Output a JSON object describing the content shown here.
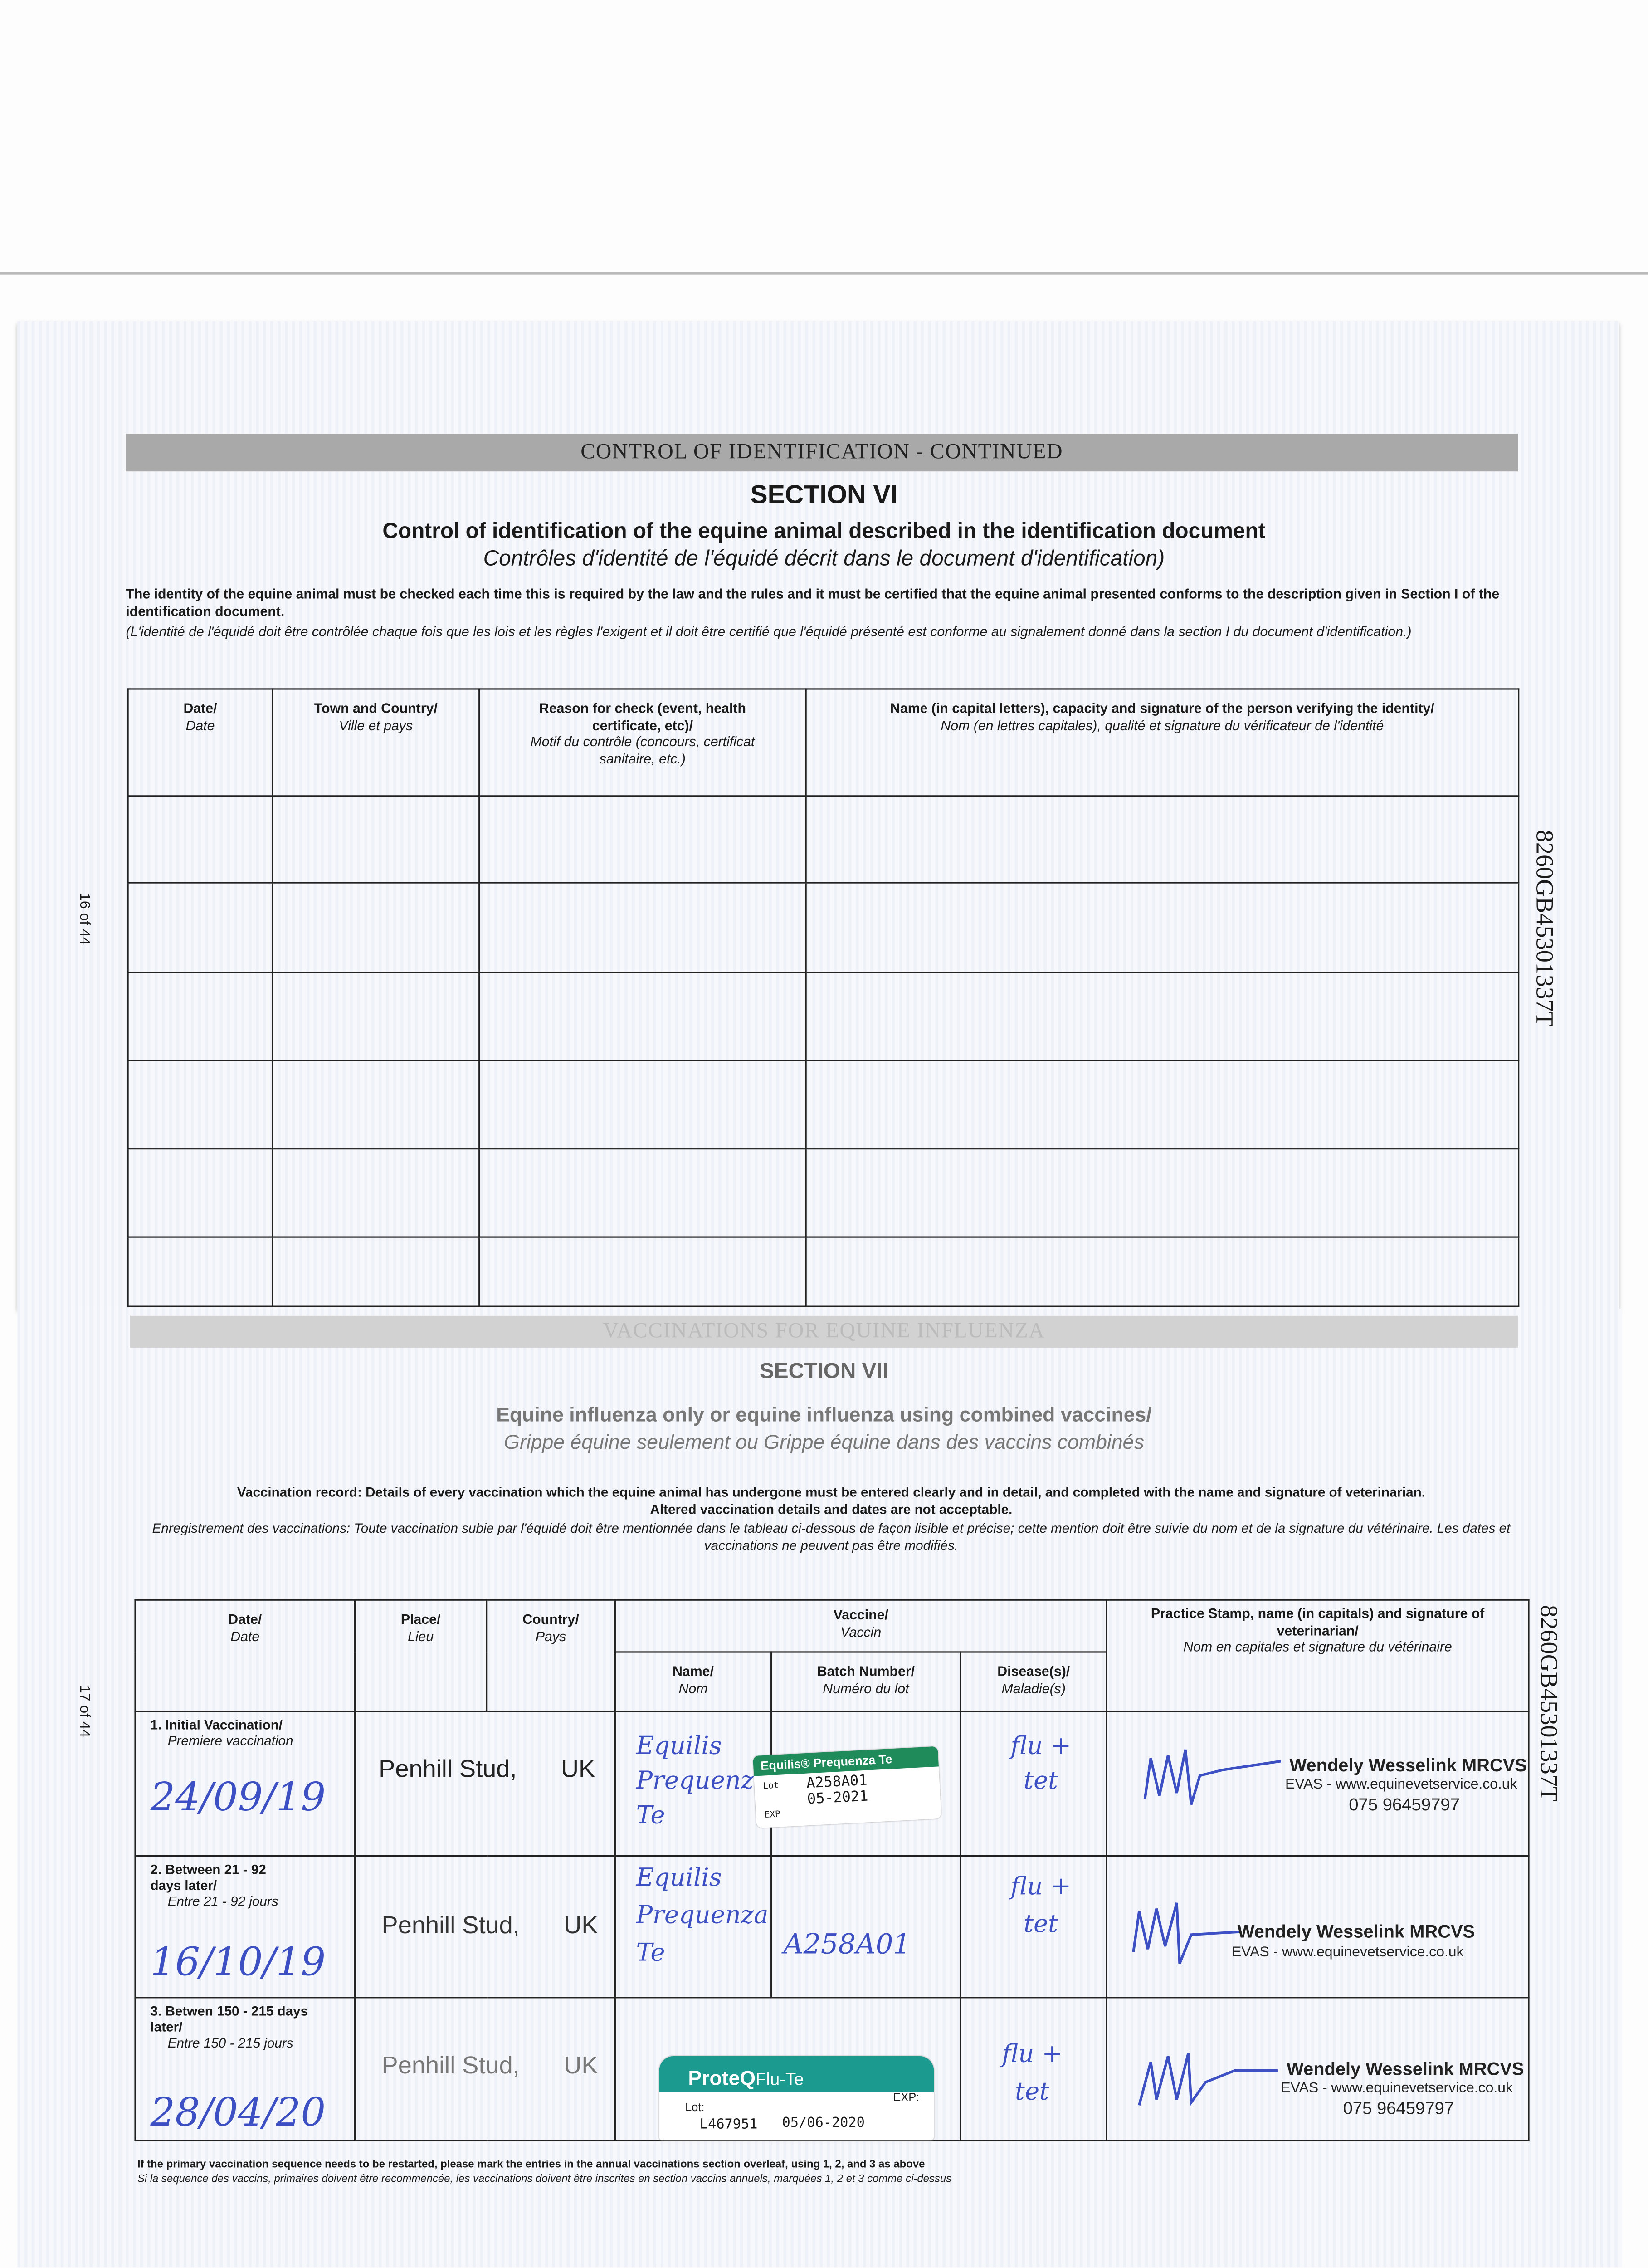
{
  "page_top": {
    "band_title": "CONTROL OF IDENTIFICATION - CONTINUED",
    "section": "SECTION VI",
    "subtitle_en": "Control of identification of the equine animal described in the identification document",
    "subtitle_fr": "Contrôles d'identité de l'équidé décrit dans le document d'identification)",
    "intro_en": "The identity of the equine animal must be checked each time this is required by the law and the rules and it must be certified that the equine animal presented conforms to the description given in Section I of the identification document.",
    "intro_fr": "(L'identité de l'équidé doit être contrôlée chaque fois que les lois et les règles l'exigent et il doit être certifié que l'équidé présenté est conforme au signalement donné dans la section I du document d'identification.)",
    "page_number": "16 of 44",
    "document_id": "8260GB45301337T",
    "table_headers": [
      {
        "en": "Date/",
        "fr": "Date"
      },
      {
        "en": "Town and Country/",
        "fr": "Ville et pays"
      },
      {
        "en": "Reason for check (event, health certificate, etc)/",
        "fr": "Motif du contrôle (concours, certificat sanitaire, etc.)"
      },
      {
        "en": "Name (in capital letters), capacity and signature of the person verifying the identity/",
        "fr": "Nom (en lettres capitales), qualité et signature du vérificateur de l'identité"
      }
    ]
  },
  "page_bottom": {
    "band_title": "VACCINATIONS FOR EQUINE INFLUENZA",
    "section": "SECTION VII",
    "subtitle_en": "Equine influenza only or equine influenza using combined vaccines/",
    "subtitle_fr": "Grippe équine seulement ou Grippe équine dans des vaccins combinés",
    "intro_en_1": "Vaccination record: Details of every vaccination which the equine animal has undergone must be entered clearly and in detail, and completed with the name and signature of veterinarian.",
    "intro_en_2": "Altered vaccination details and dates are not acceptable.",
    "intro_fr": "Enregistrement des vaccinations: Toute vaccination subie par l'équidé doit être mentionnée dans le tableau ci-dessous de façon lisible et précise; cette mention doit être suivie du nom et de la signature du vétérinaire. Les dates et vaccinations ne peuvent pas être modifiés.",
    "page_number": "17 of 44",
    "document_id": "8260GB45301337T",
    "headers": {
      "date": {
        "en": "Date/",
        "fr": "Date"
      },
      "place": {
        "en": "Place/",
        "fr": "Lieu"
      },
      "country": {
        "en": "Country/",
        "fr": "Pays"
      },
      "vaccine": {
        "en": "Vaccine/",
        "fr": "Vaccin"
      },
      "name": {
        "en": "Name/",
        "fr": "Nom"
      },
      "batch": {
        "en": "Batch Number/",
        "fr": "Numéro du lot"
      },
      "disease": {
        "en": "Disease(s)/",
        "fr": "Maladie(s)"
      },
      "vet": {
        "en": "Practice Stamp, name (in capitals) and signature of veterinarian/",
        "fr": "Nom en capitales et signature du vétérinaire"
      }
    },
    "rows": [
      {
        "label_en": "1. Initial Vaccination/",
        "label_fr": "Premiere vaccination",
        "date": "24/09/19",
        "place": "Penhill Stud,",
        "country": "UK",
        "vaccine_name": "Equilis Prequenza Te",
        "batch_handwritten": "",
        "sticker": {
          "brand": "Equilis® Prequenza Te",
          "lot_label": "Lot",
          "lot": "A258A01",
          "exp_label": "EXP",
          "exp": "05-2021"
        },
        "disease": "flu + tet",
        "vet_name": "Wendely Wesselink MRCVS",
        "vet_practice": "EVAS - www.equinevetservice.co.uk",
        "vet_phone": "075 96459797"
      },
      {
        "label_en": "2. Between 21 - 92 days later/",
        "label_fr": "Entre 21 - 92 jours",
        "date": "16/10/19",
        "place": "Penhill Stud,",
        "country": "UK",
        "vaccine_name": "Equilis Prequenza Te",
        "batch_handwritten": "A258A01",
        "disease": "flu + tet",
        "vet_name": "Wendely Wesselink MRCVS",
        "vet_practice": "EVAS - www.equinevetservice.co.uk",
        "vet_phone": ""
      },
      {
        "label_en": "3. Betwen 150 - 215 days later/",
        "label_fr": "Entre 150 - 215 jours",
        "date": "28/04/20",
        "place": "Penhill Stud,",
        "country": "UK",
        "vaccine_name": "",
        "batch_handwritten": "",
        "sticker": {
          "brand": "ProteQ",
          "product": "Flu-Te",
          "lot_label": "Lot:",
          "lot": "L467951",
          "exp_label": "EXP:",
          "exp": "05/06-2020"
        },
        "disease": "flu + tet",
        "vet_name": "Wendely Wesselink MRCVS",
        "vet_practice": "EVAS - www.equinevetservice.co.uk",
        "vet_phone": "075 96459797"
      }
    ],
    "footnote_en": "If the primary vaccination sequence needs to be restarted, please mark the entries in the annual vaccinations section overleaf, using 1, 2, and 3 as above",
    "footnote_fr": "Si la sequence des vaccins, primaires doivent être recommencée, les vaccinations doivent être inscrites en section vaccins annuels, marquées 1, 2 et 3 comme ci-dessus"
  },
  "colors": {
    "ink": "#3c50c4",
    "equilis_green": "#1f8a5a",
    "proteq_teal": "#1b9a8f",
    "band_gray": "#a9a9a9"
  }
}
